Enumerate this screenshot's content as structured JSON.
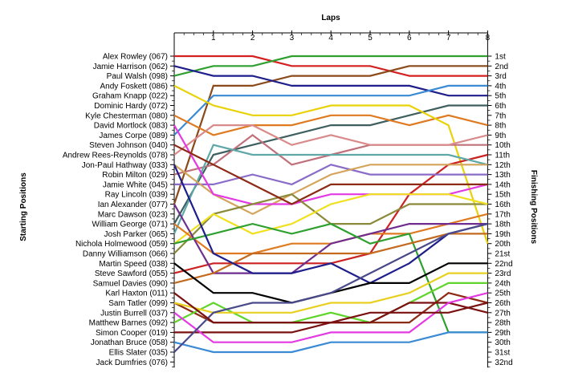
{
  "chart_data": {
    "type": "line",
    "title": "Laps",
    "xlabel": "Laps",
    "ylabel_left": "Starting Positions",
    "ylabel_right": "Finishing Positions",
    "x": [
      0,
      1,
      2,
      3,
      4,
      5,
      6,
      7,
      8
    ],
    "x_tick_labels": [
      "1",
      "2",
      "3",
      "4",
      "5",
      "6",
      "7",
      "8"
    ],
    "xlim": [
      0,
      8
    ],
    "ylim": [
      1,
      32
    ],
    "y_inverted": true,
    "drivers": [
      "Alex Rowley (067)",
      "Jamie Harrison (062)",
      "Paul Walsh (098)",
      "Andy Foskett (086)",
      "Graham Knapp (022)",
      "Dominic Hardy (072)",
      "Kyle Chesterman (080)",
      "David Mortlock (083)",
      "James Corpe (089)",
      "Steven Johnson (040)",
      "Andrew Rees-Reynolds (078)",
      "Jon-Paul Hathway (033)",
      "Robin Milton (029)",
      "Jamie White (045)",
      "Ray Lincoln (039)",
      "Ian Alexander (077)",
      "Marc Dawson (023)",
      "William George (071)",
      "Josh Parker (065)",
      "Nichola Holmewood (059)",
      "Danny Williamson (066)",
      "Martin Speed (038)",
      "Steve Sawford (055)",
      "Samuel Davies (090)",
      "Karl Haxton (011)",
      "Sam Tatler (099)",
      "Justin Burrell (037)",
      "Matthew Barnes (092)",
      "Simon Cooper (019)",
      "Jonathan Bruce (058)",
      "Ellis Slater (035)",
      "Jack Dumfries (076)"
    ],
    "finishing_labels": [
      "1st",
      "2nd",
      "3rd",
      "4th",
      "5th",
      "6th",
      "7th",
      "8th",
      "9th",
      "10th",
      "11th",
      "12th",
      "13th",
      "14th",
      "15th",
      "16th",
      "17th",
      "18th",
      "19th",
      "20th",
      "21st",
      "22nd",
      "23rd",
      "24th",
      "25th",
      "26th",
      "27th",
      "28th",
      "29th",
      "30th",
      "31st",
      "32nd"
    ],
    "series": [
      {
        "color": "#d42020",
        "values": [
          1,
          1,
          1,
          2,
          2,
          2,
          3,
          3,
          3
        ]
      },
      {
        "color": "#2fa02f",
        "values": [
          3,
          2,
          2,
          1,
          1,
          1,
          1,
          1,
          1
        ]
      },
      {
        "color": "#8b4a1a",
        "values": [
          16,
          4,
          4,
          3,
          3,
          3,
          2,
          2,
          2
        ]
      },
      {
        "color": "#1e1e8c",
        "values": [
          2,
          3,
          3,
          4,
          4,
          4,
          4,
          5,
          5
        ]
      },
      {
        "color": "#3a8ad4",
        "values": [
          9,
          5,
          5,
          5,
          5,
          5,
          5,
          4,
          4
        ]
      },
      {
        "color": "#3f5f5f",
        "values": [
          18,
          11,
          10,
          9,
          8,
          8,
          7,
          6,
          6
        ]
      },
      {
        "color": "#e07a20",
        "values": [
          7,
          9,
          8,
          8,
          7,
          7,
          8,
          7,
          8
        ]
      },
      {
        "color": "#e8d20a",
        "values": [
          4,
          6,
          7,
          7,
          6,
          6,
          6,
          8,
          20
        ]
      },
      {
        "color": "#cc2222",
        "values": [
          23,
          22,
          22,
          22,
          22,
          21,
          15,
          12,
          11
        ]
      },
      {
        "color": "#c0707a",
        "values": [
          13,
          12,
          9,
          12,
          11,
          10,
          10,
          10,
          10
        ]
      },
      {
        "color": "#d98a8a",
        "values": [
          11,
          8,
          8,
          10,
          9,
          10,
          10,
          10,
          9
        ]
      },
      {
        "color": "#5fa8a8",
        "values": [
          19,
          10,
          11,
          11,
          11,
          11,
          11,
          11,
          12
        ]
      },
      {
        "color": "#8a6cc8",
        "values": [
          14,
          14,
          13,
          14,
          12,
          13,
          13,
          13,
          13
        ]
      },
      {
        "color": "#d4a45a",
        "values": [
          12,
          15,
          17,
          15,
          13,
          12,
          12,
          12,
          12
        ]
      },
      {
        "color": "#e43ae4",
        "values": [
          8,
          15,
          16,
          16,
          15,
          15,
          15,
          15,
          14
        ]
      },
      {
        "color": "#8a8a3a",
        "values": [
          21,
          17,
          16,
          15,
          18,
          18,
          16,
          16,
          16
        ]
      },
      {
        "color": "#8c2a14",
        "values": [
          10,
          12,
          14,
          16,
          14,
          14,
          14,
          14,
          14
        ]
      },
      {
        "color": "#f0e020",
        "values": [
          20,
          17,
          19,
          18,
          16,
          15,
          15,
          15,
          16
        ]
      },
      {
        "color": "#e07a20",
        "values": [
          18,
          21,
          21,
          20,
          20,
          19,
          19,
          18,
          17
        ]
      },
      {
        "color": "#6f2d8f",
        "values": [
          16,
          23,
          23,
          23,
          20,
          19,
          18,
          18,
          18
        ]
      },
      {
        "color": "#2fa02f",
        "values": [
          20,
          19,
          18,
          19,
          18,
          20,
          19,
          29,
          29
        ]
      },
      {
        "color": "#c46a1e",
        "values": [
          24,
          23,
          21,
          21,
          21,
          21,
          20,
          19,
          19
        ]
      },
      {
        "color": "#1e1e8c",
        "values": [
          12,
          21,
          23,
          23,
          22,
          24,
          22,
          19,
          18
        ]
      },
      {
        "color": "#000000",
        "values": [
          22,
          25,
          25,
          26,
          25,
          24,
          24,
          22,
          22
        ]
      },
      {
        "color": "#8c2a14",
        "values": [
          26,
          28,
          28,
          28,
          28,
          28,
          28,
          25,
          26
        ]
      },
      {
        "color": "#5fd52a",
        "values": [
          28,
          26,
          28,
          28,
          27,
          28,
          26,
          24,
          24
        ]
      },
      {
        "color": "#e8d020",
        "values": [
          26,
          27,
          27,
          27,
          26,
          26,
          25,
          23,
          23
        ]
      },
      {
        "color": "#7a1010",
        "values": [
          29,
          29,
          29,
          29,
          28,
          28,
          26,
          26,
          27
        ]
      },
      {
        "color": "#e43ae4",
        "values": [
          27,
          30,
          30,
          30,
          29,
          29,
          29,
          26,
          25
        ]
      },
      {
        "color": "#3a8ad4",
        "values": [
          30,
          31,
          31,
          31,
          30,
          30,
          30,
          29,
          29
        ]
      },
      {
        "color": "#4a4a8a",
        "values": [
          31,
          27,
          26,
          26,
          25,
          23,
          21,
          19,
          18
        ]
      },
      {
        "color": "#7a1010",
        "values": [
          25,
          28,
          28,
          28,
          28,
          27,
          27,
          27,
          26
        ]
      }
    ]
  }
}
